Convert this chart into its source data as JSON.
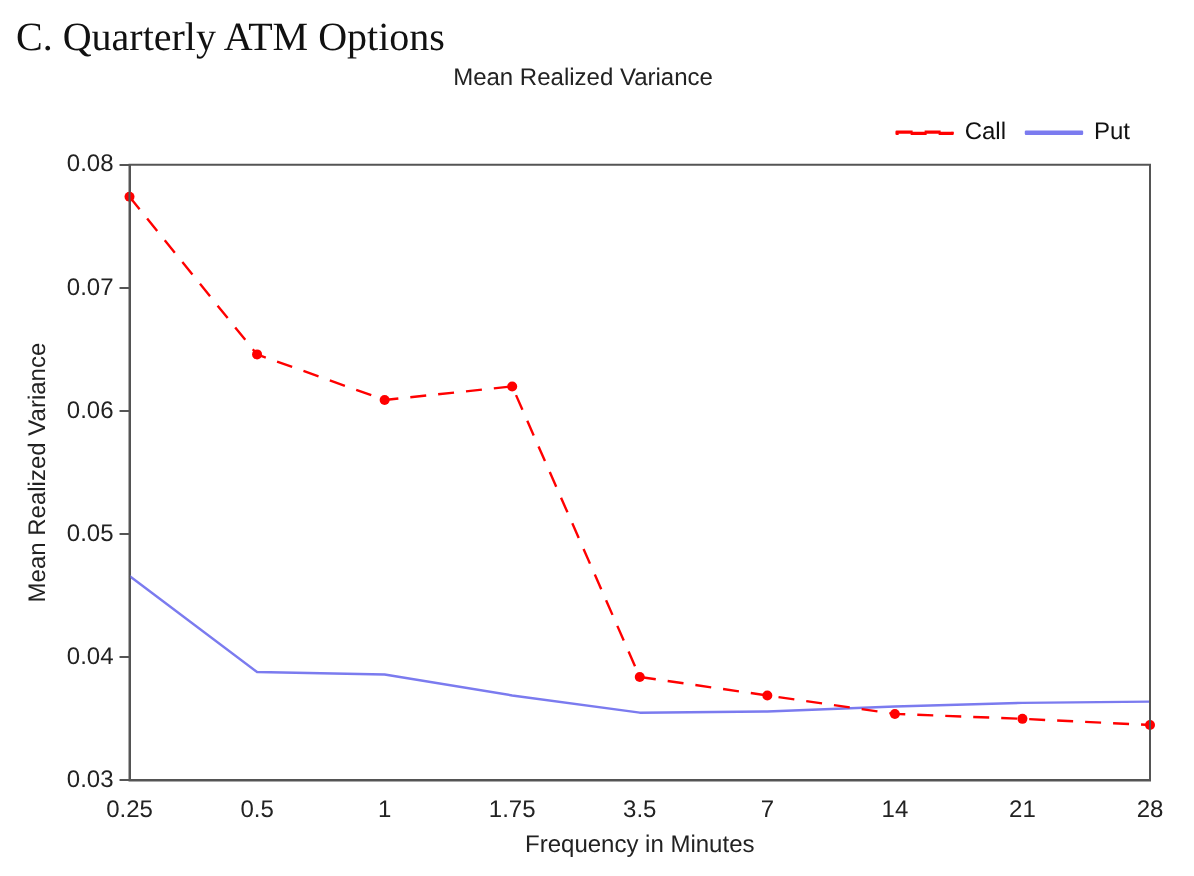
{
  "chart_data": {
    "type": "line",
    "title": "Mean Realized Variance",
    "xlabel": "Frequency in Minutes",
    "ylabel": "Mean Realized Variance",
    "annotations": [
      "C. Quarterly ATM Options"
    ],
    "categories": [
      "0.25",
      "0.5",
      "1",
      "1.75",
      "3.5",
      "7",
      "14",
      "21",
      "28"
    ],
    "series": [
      {
        "name": "Call",
        "color": "#ff0000",
        "marker": "circle",
        "line_style": "dashed",
        "values": [
          0.0774,
          0.0646,
          0.0609,
          0.062,
          0.0384,
          0.0369,
          0.0354,
          0.035,
          0.0345
        ]
      },
      {
        "name": "Put",
        "color": "#7b7bef",
        "marker": "none",
        "line_style": "solid",
        "values": [
          0.0466,
          0.0388,
          0.0386,
          0.0369,
          0.0355,
          0.0356,
          0.036,
          0.0363,
          0.0364
        ]
      }
    ],
    "ylim": [
      0.03,
      0.08
    ],
    "yticks": [
      0.03,
      0.04,
      0.05,
      0.06,
      0.07,
      0.08
    ],
    "grid": false,
    "legend": "top right"
  }
}
